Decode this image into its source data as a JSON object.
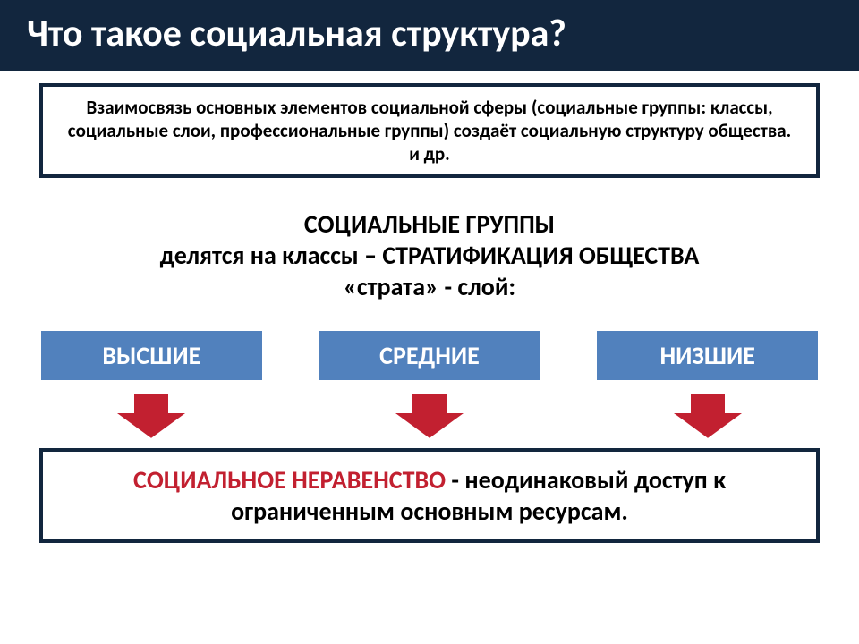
{
  "colors": {
    "title_bg": "#12263e",
    "title_text": "#ffffff",
    "box_border": "#12263e",
    "category_bg": "#5181bd",
    "category_text": "#ffffff",
    "arrow_fill": "#c22030",
    "arrow_stroke": "#ffffff",
    "result_highlight": "#c22030"
  },
  "typography": {
    "title_fontsize": 42,
    "definition_fontsize": 21,
    "subtitle_fontsize": 28,
    "category_fontsize": 28,
    "result_fontsize": 28
  },
  "title": "Что такое социальная структура?",
  "definition": "Взаимосвязь основных элементов социальной сферы (социальные группы: классы, социальные слои, профессиональные группы) создаёт социальную структуру общества. и др.",
  "subtitle": {
    "line1": "СОЦИАЛЬНЫЕ ГРУППЫ",
    "line2": "делятся на классы – СТРАТИФИКАЦИЯ ОБЩЕСТВА",
    "line3": "«страта» - слой:"
  },
  "categories": [
    {
      "label": "ВЫСШИЕ"
    },
    {
      "label": "СРЕДНИЕ"
    },
    {
      "label": "НИЗШИЕ"
    }
  ],
  "arrow": {
    "width": 90,
    "height": 56
  },
  "result": {
    "highlighted": "СОЦИАЛЬНОЕ НЕРАВЕНСТВО ",
    "plain": "- неодинаковый доступ к ограниченным основным ресурсам."
  }
}
